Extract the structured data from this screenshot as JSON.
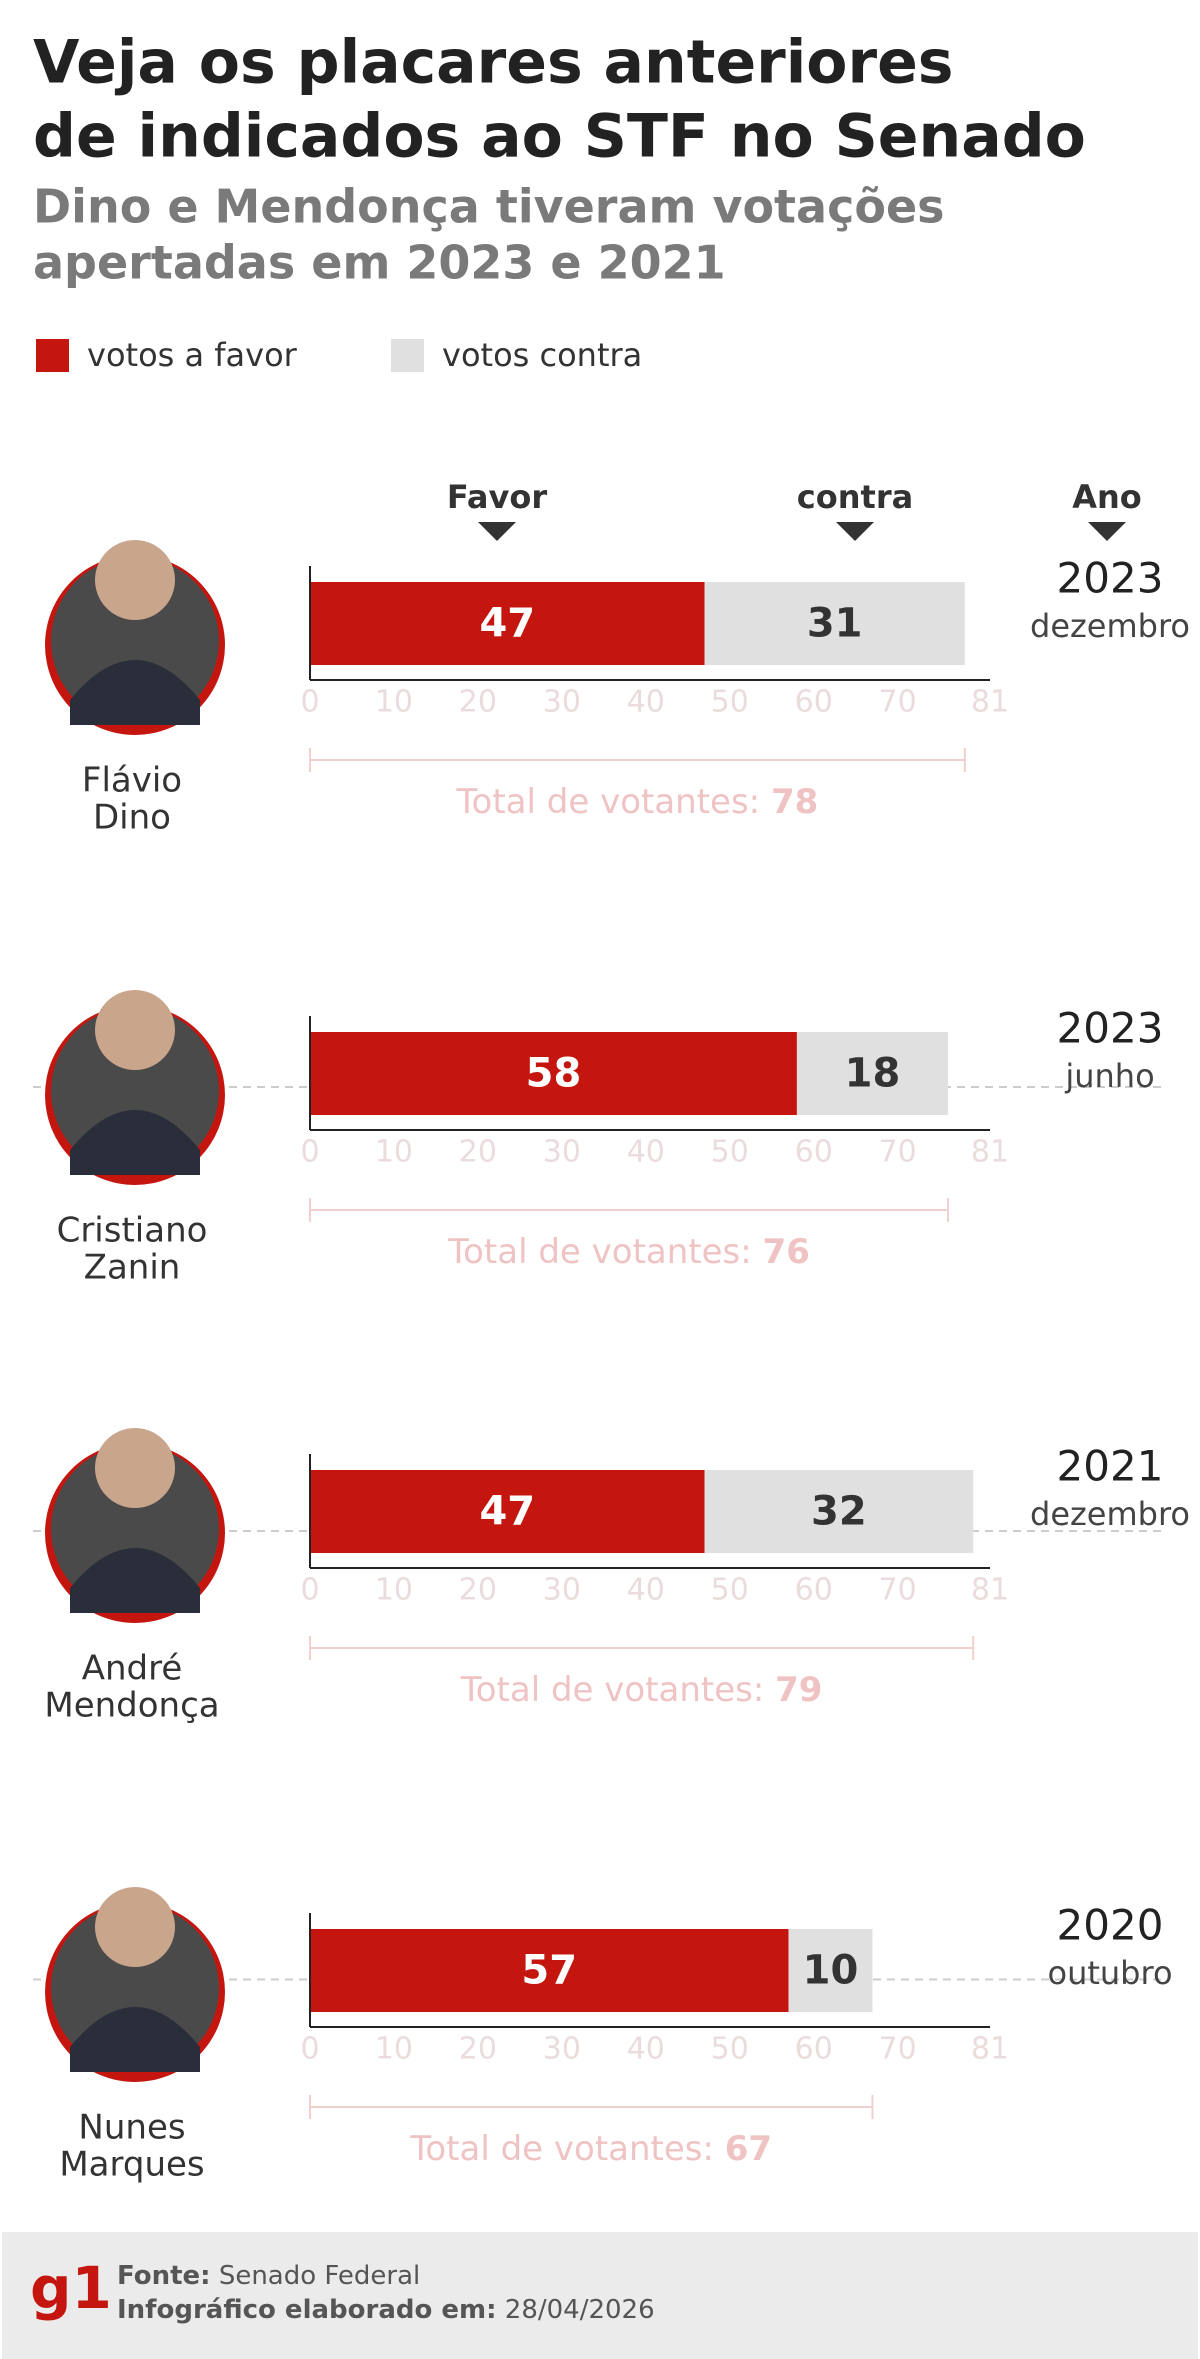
{
  "title_lines": [
    "Veja os placares anteriores",
    "de indicados ao STF no Senado"
  ],
  "subtitle_lines": [
    "Dino e Mendonça tiveram votações",
    "apertadas em 2023 e 2021"
  ],
  "headers": {
    "favor": "Favor",
    "contra": "contra",
    "year": "Ano"
  },
  "total_label": "Total de votantes:",
  "footer": {
    "logo": "g1",
    "source_label": "Fonte:",
    "source": "Senado Federal",
    "date_label": "Infográfico elaborado em:",
    "date": "28/04/2026"
  },
  "chart_data": [
    {
      "type": "bar",
      "orientation": "horizontal",
      "stacked": true,
      "name_lines": [
        "Flávio",
        "Dino"
      ],
      "year": "2023",
      "month": "dezembro",
      "series": [
        {
          "name": "votos a favor",
          "color": "#c4160f",
          "values": [
            47
          ]
        },
        {
          "name": "votos contra",
          "color": "#e0e0e0",
          "values": [
            31
          ]
        }
      ],
      "xlim": [
        0,
        81
      ],
      "xticks": [
        0,
        10,
        20,
        30,
        40,
        50,
        60,
        70,
        81
      ],
      "total": 78
    },
    {
      "type": "bar",
      "orientation": "horizontal",
      "stacked": true,
      "name_lines": [
        "Cristiano",
        "Zanin"
      ],
      "year": "2023",
      "month": "junho",
      "series": [
        {
          "name": "votos a favor",
          "color": "#c4160f",
          "values": [
            58
          ]
        },
        {
          "name": "votos contra",
          "color": "#e0e0e0",
          "values": [
            18
          ]
        }
      ],
      "xlim": [
        0,
        81
      ],
      "xticks": [
        0,
        10,
        20,
        30,
        40,
        50,
        60,
        70,
        81
      ],
      "total": 76
    },
    {
      "type": "bar",
      "orientation": "horizontal",
      "stacked": true,
      "name_lines": [
        "André",
        "Mendonça"
      ],
      "year": "2021",
      "month": "dezembro",
      "series": [
        {
          "name": "votos a favor",
          "color": "#c4160f",
          "values": [
            47
          ]
        },
        {
          "name": "votos contra",
          "color": "#e0e0e0",
          "values": [
            32
          ]
        }
      ],
      "xlim": [
        0,
        81
      ],
      "xticks": [
        0,
        10,
        20,
        30,
        40,
        50,
        60,
        70,
        81
      ],
      "total": 79
    },
    {
      "type": "bar",
      "orientation": "horizontal",
      "stacked": true,
      "name_lines": [
        "Nunes",
        "Marques"
      ],
      "year": "2020",
      "month": "outubro",
      "series": [
        {
          "name": "votos a favor",
          "color": "#c4160f",
          "values": [
            57
          ]
        },
        {
          "name": "votos contra",
          "color": "#e0e0e0",
          "values": [
            10
          ]
        }
      ],
      "xlim": [
        0,
        81
      ],
      "xticks": [
        0,
        10,
        20,
        30,
        40,
        50,
        60,
        70,
        81
      ],
      "total": 67
    }
  ]
}
